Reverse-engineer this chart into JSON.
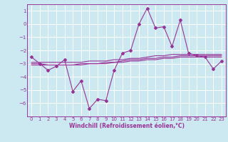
{
  "title": "",
  "xlabel": "Windchill (Refroidissement éolien,°C)",
  "background_color": "#cce8f0",
  "grid_color": "#ffffff",
  "line_color": "#993399",
  "x_data": [
    0,
    1,
    2,
    3,
    4,
    5,
    6,
    7,
    8,
    9,
    10,
    11,
    12,
    13,
    14,
    15,
    16,
    17,
    18,
    19,
    20,
    21,
    22,
    23
  ],
  "main_data": [
    -2.5,
    -3.0,
    -3.5,
    -3.2,
    -2.7,
    -5.1,
    -4.3,
    -6.4,
    -5.7,
    -5.8,
    -3.5,
    -2.2,
    -2.0,
    0.0,
    1.2,
    -0.3,
    -0.2,
    -1.7,
    0.3,
    -2.2,
    -2.4,
    -2.5,
    -3.4,
    -2.8
  ],
  "trend1": [
    -3.0,
    -3.0,
    -3.1,
    -3.1,
    -3.1,
    -3.1,
    -3.1,
    -3.0,
    -3.0,
    -3.0,
    -2.9,
    -2.9,
    -2.8,
    -2.8,
    -2.7,
    -2.7,
    -2.6,
    -2.6,
    -2.5,
    -2.5,
    -2.5,
    -2.5,
    -2.5,
    -2.5
  ],
  "trend2": [
    -3.1,
    -3.1,
    -3.1,
    -3.1,
    -3.1,
    -3.1,
    -3.0,
    -3.0,
    -3.0,
    -2.9,
    -2.9,
    -2.8,
    -2.7,
    -2.7,
    -2.6,
    -2.6,
    -2.5,
    -2.5,
    -2.4,
    -2.4,
    -2.4,
    -2.4,
    -2.4,
    -2.4
  ],
  "trend3": [
    -2.9,
    -2.9,
    -2.9,
    -2.9,
    -2.9,
    -2.9,
    -2.9,
    -2.8,
    -2.8,
    -2.8,
    -2.7,
    -2.7,
    -2.6,
    -2.6,
    -2.5,
    -2.4,
    -2.4,
    -2.3,
    -2.3,
    -2.3,
    -2.3,
    -2.3,
    -2.3,
    -2.3
  ],
  "xlim": [
    -0.5,
    23.5
  ],
  "ylim": [
    -7.0,
    1.5
  ],
  "yticks": [
    1,
    0,
    -1,
    -2,
    -3,
    -4,
    -5,
    -6
  ],
  "xticks": [
    0,
    1,
    2,
    3,
    4,
    5,
    6,
    7,
    8,
    9,
    10,
    11,
    12,
    13,
    14,
    15,
    16,
    17,
    18,
    19,
    20,
    21,
    22,
    23
  ],
  "tick_fontsize": 5.0,
  "xlabel_fontsize": 5.5
}
